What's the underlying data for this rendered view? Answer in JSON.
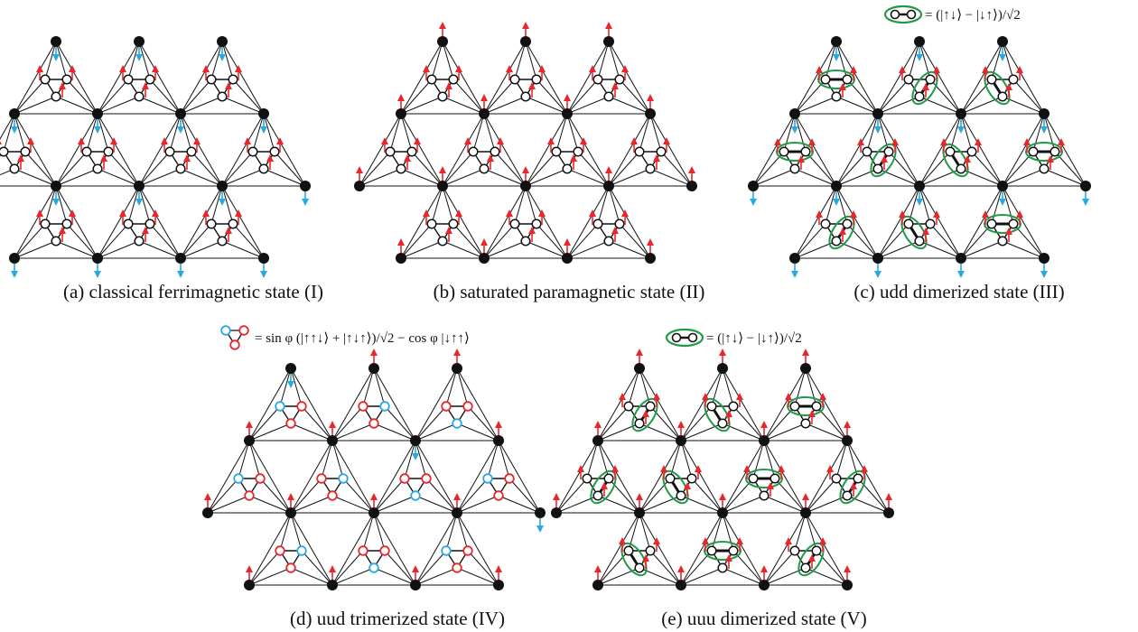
{
  "captions": {
    "a": "(a) classical ferrimagnetic state (I)",
    "b": "(b) saturated paramagnetic state (II)",
    "c": "(c) udd dimerized state (III)",
    "d": "(d) uud trimerized state (IV)",
    "e": "(e) uuu dimerized state (V)"
  },
  "legends": {
    "dimer": "= (|↑↓⟩ − |↓↑⟩)/√2",
    "trimer": "= sin φ (|↑↑↓⟩ + |↑↓↑⟩)/√2 − cos φ |↓↑↑⟩"
  },
  "colors": {
    "spin_up": "#e8262b",
    "spin_down": "#2aa8e0",
    "dimer": "#1f9a48",
    "node": "#111111",
    "bond": "#111111"
  }
}
